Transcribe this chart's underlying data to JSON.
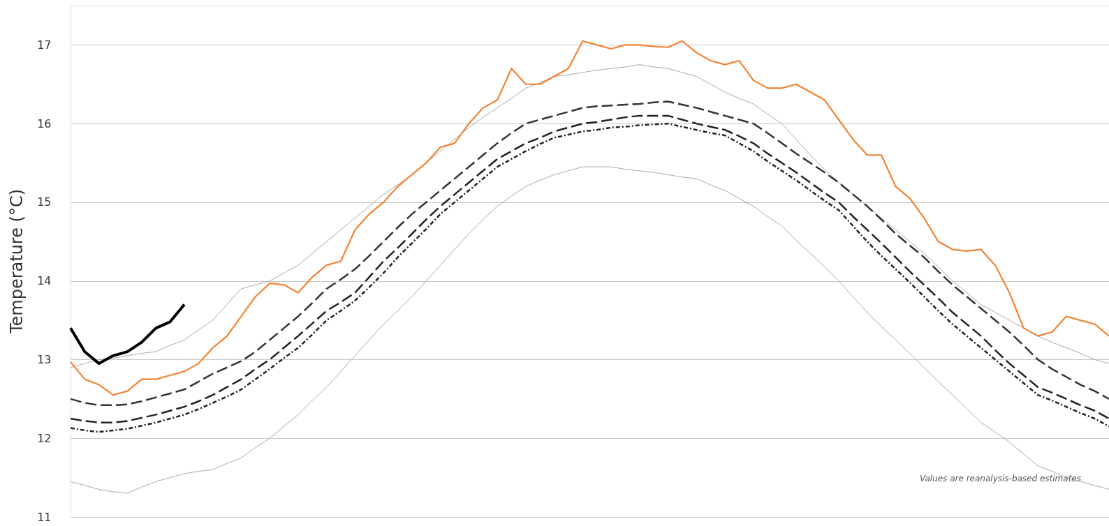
{
  "chart_data": {
    "type": "line",
    "ylabel": "Temperature (°C)",
    "annotations": [
      "Values are reanalysis-based estimates"
    ],
    "categories": [
      null,
      null,
      null,
      null,
      null,
      null,
      null,
      null,
      null,
      null,
      null,
      null,
      null,
      null,
      null,
      null,
      null,
      null,
      null,
      null,
      null,
      null,
      null,
      null,
      null,
      null,
      null,
      null,
      null,
      null,
      null,
      null,
      null,
      null,
      null,
      null,
      null,
      null,
      null,
      null,
      null,
      null,
      null,
      null,
      null,
      null,
      null,
      null,
      null,
      null,
      null,
      null,
      null,
      null,
      null,
      null,
      null,
      null,
      null,
      null,
      null,
      null,
      null,
      null,
      null,
      null,
      null,
      null,
      null,
      null,
      null,
      null,
      null,
      null
    ],
    "ylim": [
      11,
      17.5
    ],
    "yticks": [
      11,
      12,
      13,
      14,
      15,
      16,
      17
    ],
    "grid": "y",
    "tick_labels": "y",
    "marker": "none",
    "series": [
      {
        "color": "#aaaaaa",
        "line_style": "solid",
        "values": [
          11.45,
          11.4,
          11.35,
          11.32,
          11.3,
          11.38,
          11.45,
          11.5,
          11.55,
          11.58,
          11.6,
          11.68,
          11.75,
          11.88,
          12.0,
          12.15,
          12.3,
          12.48,
          12.65,
          12.85,
          13.05,
          13.25,
          13.45,
          13.62,
          13.8,
          14.0,
          14.2,
          14.4,
          14.6,
          14.78,
          14.95,
          15.08,
          15.2,
          15.28,
          15.35,
          15.4,
          15.45,
          15.45,
          15.45,
          15.42,
          15.4,
          15.38,
          15.35,
          15.32,
          15.3,
          15.22,
          15.15,
          15.05,
          14.95,
          14.82,
          14.7,
          14.52,
          14.35,
          14.18,
          14.0,
          13.8,
          13.6,
          13.42,
          13.25,
          13.08,
          12.9,
          12.72,
          12.55,
          12.38,
          12.2,
          12.08,
          11.95,
          11.8,
          11.65,
          11.58,
          11.5,
          11.45,
          11.4,
          11.35
        ]
      },
      {
        "color": "#aaaaaa",
        "line_style": "solid",
        "values": [
          12.9,
          12.95,
          13.0,
          13.02,
          13.05,
          13.08,
          13.1,
          13.18,
          13.25,
          13.38,
          13.5,
          13.7,
          13.9,
          13.95,
          14.0,
          14.1,
          14.2,
          14.35,
          14.5,
          14.65,
          14.8,
          14.95,
          15.1,
          15.22,
          15.35,
          15.5,
          15.65,
          15.8,
          15.95,
          16.08,
          16.2,
          16.32,
          16.45,
          16.52,
          16.6,
          16.62,
          16.65,
          16.68,
          16.7,
          16.72,
          16.75,
          16.72,
          16.7,
          16.65,
          16.6,
          16.5,
          16.4,
          16.32,
          16.25,
          16.12,
          16.0,
          15.8,
          15.6,
          15.42,
          15.25,
          15.1,
          14.95,
          14.8,
          14.65,
          14.5,
          14.35,
          14.18,
          14.0,
          13.85,
          13.7,
          13.6,
          13.5,
          13.4,
          13.3,
          13.22,
          13.15,
          13.08,
          13.0,
          12.95
        ]
      },
      {
        "color": "#333333",
        "line_style": "dashed",
        "values": [
          12.5,
          12.45,
          12.42,
          12.42,
          12.43,
          12.47,
          12.52,
          12.57,
          12.62,
          12.72,
          12.82,
          12.9,
          12.98,
          13.1,
          13.25,
          13.4,
          13.55,
          13.72,
          13.9,
          14.02,
          14.15,
          14.32,
          14.5,
          14.68,
          14.85,
          15.0,
          15.15,
          15.3,
          15.45,
          15.6,
          15.75,
          15.88,
          16.0,
          16.05,
          16.1,
          16.15,
          16.2,
          16.22,
          16.23,
          16.24,
          16.25,
          16.27,
          16.28,
          16.24,
          16.2,
          16.15,
          16.1,
          16.05,
          16.0,
          15.88,
          15.75,
          15.62,
          15.5,
          15.38,
          15.25,
          15.1,
          14.95,
          14.78,
          14.6,
          14.45,
          14.3,
          14.12,
          13.95,
          13.8,
          13.65,
          13.5,
          13.35,
          13.18,
          13.0,
          12.88,
          12.78,
          12.68,
          12.6,
          12.5
        ]
      },
      {
        "color": "#222222",
        "line_style": "dashed",
        "values": [
          12.25,
          12.22,
          12.2,
          12.2,
          12.22,
          12.26,
          12.3,
          12.35,
          12.4,
          12.47,
          12.55,
          12.65,
          12.75,
          12.88,
          13.0,
          13.15,
          13.3,
          13.46,
          13.62,
          13.73,
          13.85,
          14.05,
          14.25,
          14.42,
          14.6,
          14.78,
          14.95,
          15.1,
          15.25,
          15.4,
          15.55,
          15.65,
          15.75,
          15.82,
          15.9,
          15.95,
          16.0,
          16.02,
          16.05,
          16.08,
          16.1,
          16.1,
          16.1,
          16.05,
          16.0,
          15.96,
          15.92,
          15.84,
          15.75,
          15.62,
          15.5,
          15.38,
          15.25,
          15.12,
          15.0,
          14.82,
          14.65,
          14.48,
          14.3,
          14.12,
          13.95,
          13.78,
          13.6,
          13.45,
          13.3,
          13.12,
          12.95,
          12.8,
          12.65,
          12.58,
          12.5,
          12.42,
          12.35,
          12.25
        ]
      },
      {
        "color": "#222222",
        "line_style": "dotted",
        "values": [
          12.13,
          12.1,
          12.08,
          12.1,
          12.12,
          12.16,
          12.2,
          12.25,
          12.3,
          12.37,
          12.45,
          12.53,
          12.62,
          12.75,
          12.88,
          13.02,
          13.15,
          13.32,
          13.5,
          13.62,
          13.75,
          13.92,
          14.1,
          14.3,
          14.48,
          14.66,
          14.85,
          15.0,
          15.15,
          15.3,
          15.45,
          15.55,
          15.65,
          15.74,
          15.82,
          15.86,
          15.9,
          15.92,
          15.95,
          15.96,
          15.98,
          15.99,
          16.0,
          15.96,
          15.92,
          15.88,
          15.85,
          15.75,
          15.65,
          15.52,
          15.4,
          15.28,
          15.15,
          15.02,
          14.9,
          14.7,
          14.5,
          14.32,
          14.15,
          13.98,
          13.8,
          13.62,
          13.45,
          13.3,
          13.15,
          13.0,
          12.85,
          12.7,
          12.55,
          12.48,
          12.4,
          12.32,
          12.25,
          12.15
        ]
      },
      {
        "color": "#f58231",
        "line_style": "solid",
        "values": [
          12.97,
          12.75,
          12.68,
          12.55,
          12.6,
          12.75,
          12.75,
          12.8,
          12.85,
          12.95,
          13.15,
          13.3,
          13.55,
          13.8,
          13.97,
          13.95,
          13.85,
          14.05,
          14.2,
          14.25,
          14.65,
          14.85,
          15.0,
          15.2,
          15.35,
          15.5,
          15.7,
          15.75,
          16.0,
          16.2,
          16.3,
          16.7,
          16.5,
          16.5,
          16.6,
          16.7,
          17.05,
          17.0,
          16.95,
          17.0,
          17.0,
          16.98,
          16.97,
          17.05,
          16.9,
          16.8,
          16.75,
          16.8,
          16.55,
          16.45,
          16.45,
          16.5,
          16.4,
          16.3,
          16.05,
          15.8,
          15.6,
          15.6,
          15.2,
          15.05,
          14.8,
          14.5,
          14.4,
          14.38,
          14.4,
          14.2,
          13.85,
          13.4,
          13.3,
          13.35,
          13.55,
          13.5,
          13.45,
          13.3
        ]
      },
      {
        "color": "#000000",
        "line_style": "solid",
        "values": [
          13.4,
          13.1,
          12.95,
          13.05,
          13.1,
          13.22,
          13.4,
          13.48,
          13.7,
          null,
          null,
          null,
          null,
          null,
          null,
          null,
          null,
          null,
          null,
          null,
          null,
          null,
          null,
          null,
          null,
          null,
          null,
          null,
          null,
          null,
          null,
          null,
          null,
          null,
          null,
          null,
          null,
          null,
          null,
          null,
          null,
          null,
          null,
          null,
          null,
          null,
          null,
          null,
          null,
          null,
          null,
          null,
          null,
          null,
          null,
          null,
          null,
          null,
          null,
          null,
          null,
          null,
          null,
          null,
          null,
          null,
          null,
          null,
          null,
          null,
          null,
          null,
          null,
          null
        ]
      }
    ]
  }
}
